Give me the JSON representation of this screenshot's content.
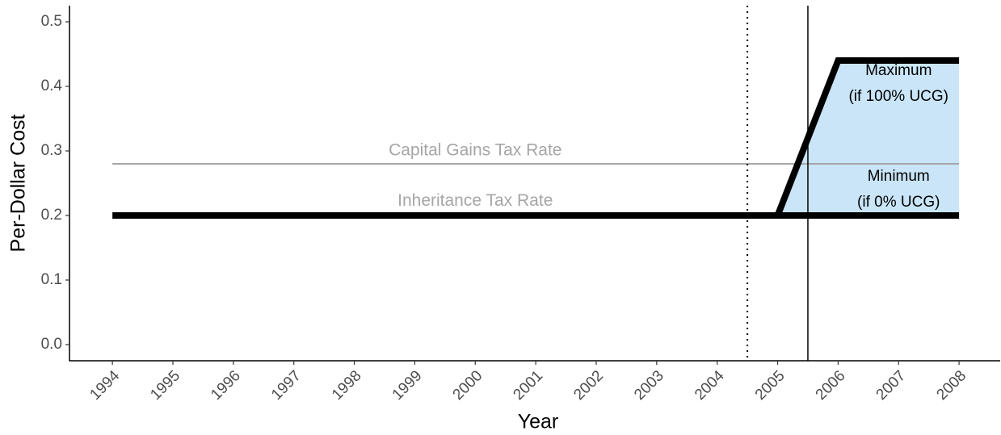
{
  "chart_data": {
    "type": "line",
    "xlabel": "Year",
    "ylabel": "Per-Dollar Cost",
    "xlim": [
      1993.29,
      2008.68
    ],
    "ylim": [
      -0.025,
      0.525
    ],
    "xticks": [
      1994,
      1995,
      1996,
      1997,
      1998,
      1999,
      2000,
      2001,
      2002,
      2003,
      2004,
      2005,
      2006,
      2007,
      2008
    ],
    "yticks": [
      {
        "value": 0,
        "label": "0.0"
      },
      0.1,
      0.2,
      0.3,
      0.4,
      0.5
    ],
    "area": {
      "x": [
        2005,
        2006,
        2008
      ],
      "lower": [
        0.2,
        0.2,
        0.2
      ],
      "upper": [
        0.2,
        0.44,
        0.44
      ],
      "color": "#c9e5f7"
    },
    "series": [
      {
        "x": [
          1994,
          2008
        ],
        "values": [
          0.28,
          0.28
        ],
        "color": "#a6a6a6",
        "style": "thin"
      },
      {
        "x": [
          1994,
          2008
        ],
        "values": [
          0.2,
          0.2
        ],
        "color": "#000000",
        "style": "thick"
      },
      {
        "x": [
          2005,
          2006,
          2008
        ],
        "values": [
          0.2,
          0.44,
          0.44
        ],
        "color": "#000000",
        "style": "thick"
      }
    ],
    "vlines": [
      {
        "x": 2004.5,
        "style": "dotted",
        "color": "#000000"
      },
      {
        "x": 2005.5,
        "style": "solid",
        "color": "#000000"
      }
    ],
    "annotations": [
      {
        "text": "Capital Gains Tax Rate",
        "x": 2000,
        "y": 0.3,
        "color": "#a6a6a6"
      },
      {
        "text": "Inheritance Tax Rate",
        "x": 2000,
        "y": 0.222,
        "color": "#a6a6a6"
      },
      {
        "text": "Maximum",
        "x": 2007,
        "y": 0.424,
        "color": "#000000"
      },
      {
        "text": "(if 100% UCG)",
        "x": 2007,
        "y": 0.384,
        "color": "#000000"
      },
      {
        "text": "Minimum",
        "x": 2007,
        "y": 0.26,
        "color": "#000000"
      },
      {
        "text": "(if 0% UCG)",
        "x": 2007,
        "y": 0.22,
        "color": "#000000"
      }
    ]
  }
}
